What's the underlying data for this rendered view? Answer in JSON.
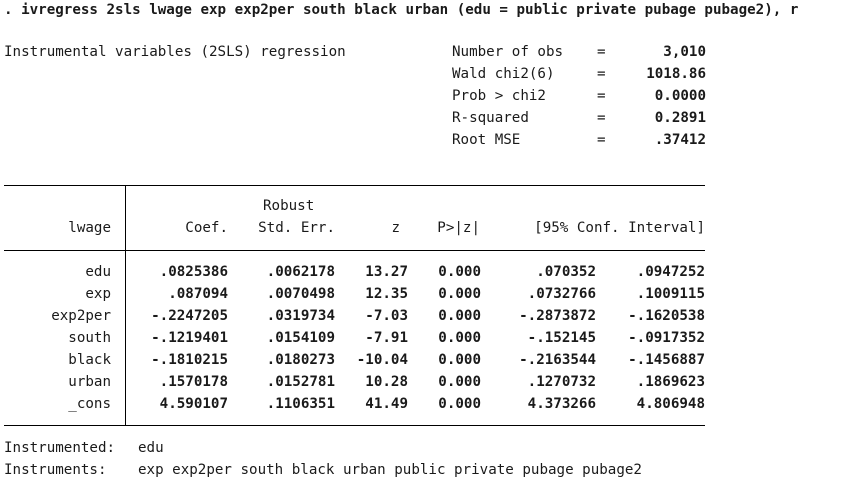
{
  "command": ". ivregress 2sls lwage exp exp2per south black urban (edu = public private pubage pubage2), r",
  "title": "Instrumental variables (2SLS) regression",
  "stats": [
    {
      "label": "Number of obs",
      "eq": "=",
      "value": "3,010"
    },
    {
      "label": "Wald chi2(6)",
      "eq": "=",
      "value": "1018.86"
    },
    {
      "label": "Prob > chi2",
      "eq": "=",
      "value": "0.0000"
    },
    {
      "label": "R-squared",
      "eq": "=",
      "value": "0.2891"
    },
    {
      "label": "Root MSE",
      "eq": "=",
      "value": ".37412"
    }
  ],
  "table": {
    "depvar": "lwage",
    "header_top": "Robust",
    "headers": [
      "Coef.",
      "Std. Err.",
      "z",
      "P>|z|",
      "[95% Conf. Interval]"
    ],
    "rows": [
      {
        "var": "edu",
        "coef": ".0825386",
        "se": ".0062178",
        "z": "13.27",
        "p": "0.000",
        "lo": ".070352",
        "hi": ".0947252"
      },
      {
        "var": "exp",
        "coef": ".087094",
        "se": ".0070498",
        "z": "12.35",
        "p": "0.000",
        "lo": ".0732766",
        "hi": ".1009115"
      },
      {
        "var": "exp2per",
        "coef": "-.2247205",
        "se": ".0319734",
        "z": "-7.03",
        "p": "0.000",
        "lo": "-.2873872",
        "hi": "-.1620538"
      },
      {
        "var": "south",
        "coef": "-.1219401",
        "se": ".0154109",
        "z": "-7.91",
        "p": "0.000",
        "lo": "-.152145",
        "hi": "-.0917352"
      },
      {
        "var": "black",
        "coef": "-.1810215",
        "se": ".0180273",
        "z": "-10.04",
        "p": "0.000",
        "lo": "-.2163544",
        "hi": "-.1456887"
      },
      {
        "var": "urban",
        "coef": ".1570178",
        "se": ".0152781",
        "z": "10.28",
        "p": "0.000",
        "lo": ".1270732",
        "hi": ".1869623"
      },
      {
        "var": "_cons",
        "coef": "4.590107",
        "se": ".1106351",
        "z": "41.49",
        "p": "0.000",
        "lo": "4.373266",
        "hi": "4.806948"
      }
    ]
  },
  "footer": {
    "instrumented_label": "Instrumented:",
    "instrumented_value": "edu",
    "instruments_label": "Instruments:",
    "instruments_value": "exp exp2per south black urban public private pubage pubage2"
  }
}
